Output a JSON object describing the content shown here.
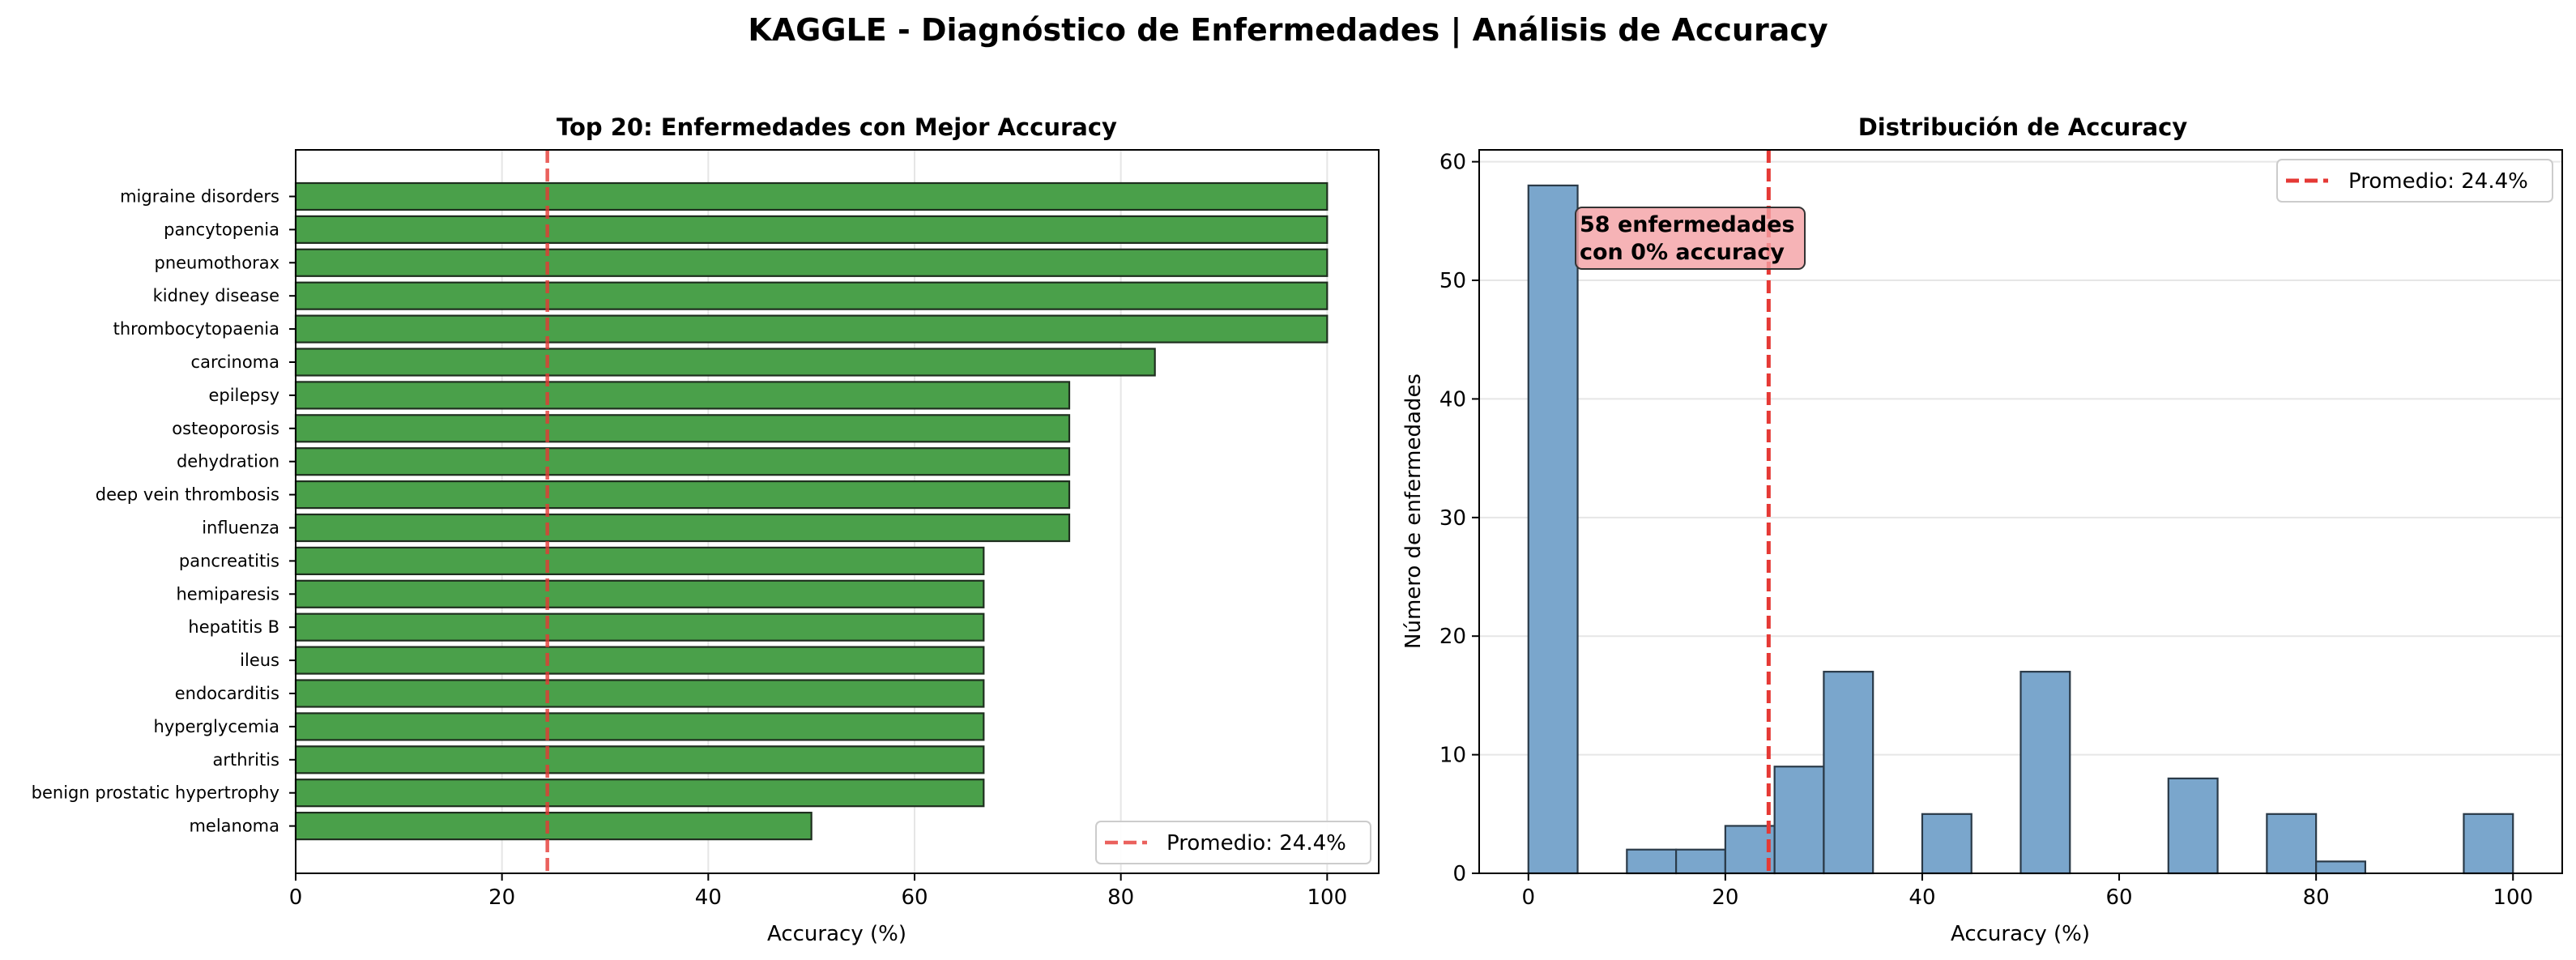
{
  "figure": {
    "title": "KAGGLE - Diagnóstico de Enfermedades | Análisis de Accuracy"
  },
  "colors": {
    "bar_green": "#4aa04a",
    "bar_edge": "#1f2f1f",
    "hist_blue": "#7aa6cc",
    "hist_edge": "#2a3a48",
    "mean_line": "#e53935",
    "annotation_bg": "#f4a0a4"
  },
  "chart_data": [
    {
      "type": "bar",
      "orientation": "horizontal",
      "title": "Top 20: Enfermedades con Mejor Accuracy",
      "xlabel": "Accuracy (%)",
      "ylabel": "",
      "xlim": [
        0,
        105
      ],
      "xticks": [
        0,
        20,
        40,
        60,
        80,
        100
      ],
      "grid": "x",
      "categories": [
        "migraine disorders",
        "pancytopenia",
        "pneumothorax",
        "kidney disease",
        "thrombocytopaenia",
        "carcinoma",
        "epilepsy",
        "osteoporosis",
        "dehydration",
        "deep vein thrombosis",
        "influenza",
        "pancreatitis",
        "hemiparesis",
        "hepatitis B",
        "ileus",
        "endocarditis",
        "hyperglycemia",
        "arthritis",
        "benign prostatic hypertrophy",
        "melanoma"
      ],
      "values": [
        100,
        100,
        100,
        100,
        100,
        83.3,
        75,
        75,
        75,
        75,
        75,
        66.7,
        66.7,
        66.7,
        66.7,
        66.7,
        66.7,
        66.7,
        66.7,
        50
      ],
      "reference_line": {
        "value": 24.4,
        "label": "Promedio: 24.4%"
      },
      "legend": "bottom-right"
    },
    {
      "type": "histogram",
      "title": "Distribución de Accuracy",
      "xlabel": "Accuracy (%)",
      "ylabel": "Número de enfermedades",
      "xlim": [
        -5,
        105
      ],
      "ylim": [
        0,
        61
      ],
      "xticks": [
        0,
        20,
        40,
        60,
        80,
        100
      ],
      "yticks": [
        0,
        10,
        20,
        30,
        40,
        50,
        60
      ],
      "grid": "y",
      "bin_width": 5,
      "bins": [
        {
          "start": 0,
          "count": 58
        },
        {
          "start": 10,
          "count": 2
        },
        {
          "start": 15,
          "count": 2
        },
        {
          "start": 20,
          "count": 4
        },
        {
          "start": 25,
          "count": 9
        },
        {
          "start": 30,
          "count": 17
        },
        {
          "start": 40,
          "count": 5
        },
        {
          "start": 50,
          "count": 17
        },
        {
          "start": 65,
          "count": 8
        },
        {
          "start": 75,
          "count": 5
        },
        {
          "start": 80,
          "count": 1
        },
        {
          "start": 95,
          "count": 5
        }
      ],
      "reference_line": {
        "value": 24.4,
        "label": "Promedio: 24.4%"
      },
      "annotation": {
        "line1": "58 enfermedades",
        "line2": "con 0% accuracy",
        "x": 5,
        "y": 55
      },
      "legend": "top-right"
    }
  ]
}
